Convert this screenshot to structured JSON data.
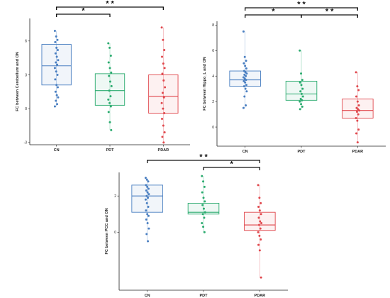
{
  "chart_data": [
    {
      "type": "box",
      "title": "",
      "xlabel": "",
      "ylabel": "FC between Cerebellum and ON",
      "categories": [
        "CN",
        "PDT",
        "PDAR"
      ],
      "ylim": [
        -3.2,
        8
      ],
      "yticks": [
        -3,
        0,
        3,
        6
      ],
      "colors": [
        "#4a7fc1",
        "#2bab6f",
        "#e0474c"
      ],
      "boxes": [
        {
          "q1": 2.1,
          "median": 3.8,
          "q3": 5.7
        },
        {
          "q1": 0.3,
          "median": 1.6,
          "q3": 3.1
        },
        {
          "q1": -0.4,
          "median": 1.1,
          "q3": 3.0
        }
      ],
      "points": [
        [
          6.9,
          6.4,
          6.1,
          5.9,
          5.4,
          5.2,
          4.9,
          4.6,
          4.3,
          4.1,
          3.9,
          3.6,
          3.3,
          3.0,
          2.6,
          2.1,
          1.9,
          1.5,
          1.2,
          1.0,
          0.7,
          0.4,
          0.2
        ],
        [
          5.8,
          5.4,
          4.7,
          4.1,
          3.6,
          3.2,
          2.9,
          2.4,
          2.0,
          1.6,
          1.1,
          0.8,
          0.5,
          0.2,
          -0.3,
          -1.2,
          -1.9
        ],
        [
          7.2,
          6.1,
          5.2,
          4.6,
          4.0,
          3.6,
          3.1,
          2.5,
          1.9,
          1.4,
          1.0,
          0.5,
          0.0,
          -0.4,
          -0.9,
          -1.5,
          -2.1,
          -2.5,
          -3.0
        ]
      ],
      "significance": [
        {
          "from": 0,
          "to": 1,
          "label": "*"
        },
        {
          "from": 0,
          "to": 2,
          "label": "* *"
        }
      ]
    },
    {
      "type": "box",
      "title": "",
      "xlabel": "",
      "ylabel": "FC between Hippo_L and ON",
      "categories": [
        "CN",
        "PDT",
        "PDAR"
      ],
      "ylim": [
        -1.5,
        8.3
      ],
      "yticks": [
        0,
        2,
        4,
        6,
        8
      ],
      "colors": [
        "#4a7fc1",
        "#2bab6f",
        "#e0474c"
      ],
      "boxes": [
        {
          "q1": 3.2,
          "median": 3.7,
          "q3": 4.4
        },
        {
          "q1": 2.1,
          "median": 2.6,
          "q3": 3.6
        },
        {
          "q1": 0.7,
          "median": 1.3,
          "q3": 2.2
        }
      ],
      "points": [
        [
          7.5,
          5.5,
          5.2,
          5.0,
          4.8,
          4.6,
          4.4,
          4.3,
          4.2,
          4.1,
          4.0,
          3.9,
          3.8,
          3.7,
          3.6,
          3.5,
          3.3,
          3.2,
          3.0,
          2.8,
          2.4,
          1.7,
          1.5
        ],
        [
          6.0,
          4.2,
          3.7,
          3.5,
          3.3,
          3.0,
          2.8,
          2.6,
          2.4,
          2.2,
          2.1,
          2.0,
          1.8,
          1.6,
          1.4
        ],
        [
          4.3,
          3.2,
          2.9,
          2.4,
          2.0,
          1.7,
          1.5,
          1.4,
          1.3,
          1.2,
          1.0,
          0.7,
          0.5,
          -0.2,
          -0.5,
          -1.2
        ]
      ],
      "significance": [
        {
          "from": 0,
          "to": 1,
          "label": "*"
        },
        {
          "from": 0,
          "to": 2,
          "label": "* *"
        },
        {
          "from": 1,
          "to": 2,
          "label": "* *"
        }
      ]
    },
    {
      "type": "box",
      "title": "",
      "xlabel": "",
      "ylabel": "FC between PCC and ON",
      "categories": [
        "CN",
        "PDT",
        "PDAR"
      ],
      "ylim": [
        -3.2,
        3.3
      ],
      "yticks": [
        0,
        2
      ],
      "colors": [
        "#4a7fc1",
        "#2bab6f",
        "#e0474c"
      ],
      "boxes": [
        {
          "q1": 1.1,
          "median": 2.0,
          "q3": 2.6
        },
        {
          "q1": 1.0,
          "median": 1.1,
          "q3": 1.6
        },
        {
          "q1": 0.1,
          "median": 0.4,
          "q3": 1.1
        }
      ],
      "points": [
        [
          3.0,
          2.9,
          2.8,
          2.6,
          2.5,
          2.4,
          2.3,
          2.2,
          2.1,
          2.0,
          1.9,
          1.8,
          1.6,
          1.4,
          1.2,
          1.0,
          0.9,
          0.7,
          0.5,
          0.2,
          -0.1,
          -0.5
        ],
        [
          3.1,
          2.8,
          2.5,
          2.2,
          1.9,
          1.7,
          1.5,
          1.3,
          1.1,
          1.0,
          0.8,
          0.5,
          0.3,
          0.0
        ],
        [
          2.6,
          1.9,
          1.6,
          1.4,
          1.2,
          1.0,
          0.8,
          0.6,
          0.5,
          0.4,
          0.2,
          0.0,
          -0.2,
          -0.4,
          -0.7,
          -1.0,
          -2.5
        ]
      ],
      "significance": [
        {
          "from": 0,
          "to": 2,
          "label": "* *"
        },
        {
          "from": 1,
          "to": 2,
          "label": "*"
        }
      ]
    }
  ]
}
